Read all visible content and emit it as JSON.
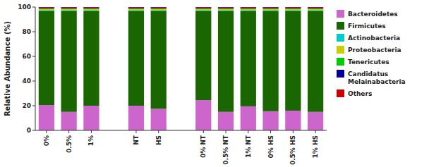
{
  "chart_data": {
    "type": "bar",
    "stacked": true,
    "categories": [
      "0%",
      "0.5%",
      "1%",
      null,
      "NT",
      "HS",
      null,
      "0% NT",
      "0.5% NT",
      "1% NT",
      "0% HS",
      "0.5% HS",
      "1% HS"
    ],
    "series": [
      {
        "name": "Bacteroidetes",
        "color": "#CC66CC",
        "values": [
          20.5,
          15.0,
          20.0,
          0,
          20.0,
          17.5,
          0,
          24.5,
          15.0,
          19.5,
          15.5,
          16.0,
          15.0
        ]
      },
      {
        "name": "Firmicutes",
        "color": "#1A6600",
        "values": [
          76.5,
          82.0,
          77.0,
          0,
          77.0,
          79.5,
          0,
          72.5,
          82.0,
          77.5,
          81.5,
          81.0,
          82.0
        ]
      },
      {
        "name": "Actinobacteria",
        "color": "#00CCCC",
        "values": [
          0.5,
          0.5,
          0.5,
          0,
          0.5,
          0.5,
          0,
          0.5,
          0.5,
          0.5,
          0.5,
          0.5,
          0.5
        ]
      },
      {
        "name": "Proteobacteria",
        "color": "#CCCC00",
        "values": [
          0.8,
          0.8,
          0.8,
          0,
          0.8,
          0.8,
          0,
          0.8,
          0.8,
          0.8,
          0.8,
          0.8,
          0.8
        ]
      },
      {
        "name": "Tenericutes",
        "color": "#00CC00",
        "values": [
          0.5,
          0.5,
          0.5,
          0,
          0.5,
          0.5,
          0,
          0.5,
          0.5,
          0.5,
          0.5,
          0.5,
          0.5
        ]
      },
      {
        "name": "Candidatus\nMelainabacteria",
        "color": "#000099",
        "values": [
          0.5,
          0.5,
          0.5,
          0,
          0.5,
          0.5,
          0,
          0.5,
          0.5,
          0.5,
          0.5,
          0.5,
          0.5
        ]
      },
      {
        "name": "Others",
        "color": "#CC0000",
        "values": [
          0.7,
          0.7,
          0.7,
          0,
          0.7,
          0.7,
          0,
          0.7,
          0.7,
          0.7,
          0.7,
          0.7,
          0.7
        ]
      }
    ],
    "y_label": "Relative Abundance (%)",
    "ylim": [
      0,
      100
    ],
    "yticks": [
      0,
      20,
      40,
      60,
      80,
      100
    ],
    "grid": false,
    "legend": "right"
  }
}
